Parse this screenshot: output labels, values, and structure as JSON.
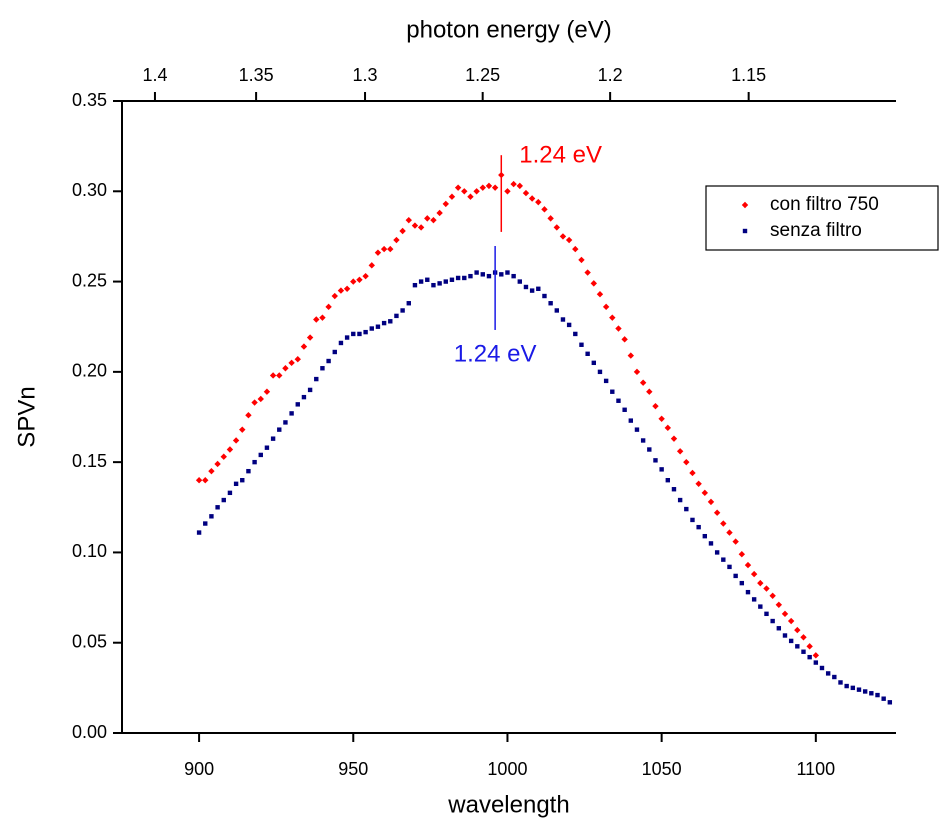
{
  "chart_data": {
    "type": "scatter",
    "xlabel": "wavelength",
    "ylabel": "SPVn",
    "x2label": "photon energy (eV)",
    "xlim": [
      875,
      1126
    ],
    "xticks": [
      900,
      950,
      1000,
      1050,
      1100
    ],
    "ylim": [
      0,
      0.35
    ],
    "yticks": [
      {
        "value": 0,
        "label": "0.00"
      },
      {
        "value": 0.05,
        "label": "0.05"
      },
      {
        "value": 0.1,
        "label": "0.10"
      },
      {
        "value": 0.15,
        "label": "0.15"
      },
      {
        "value": 0.2,
        "label": "0.20"
      },
      {
        "value": 0.25,
        "label": "0.25"
      },
      {
        "value": 0.3,
        "label": "0.30"
      },
      {
        "value": 0.35,
        "label": "0.35"
      }
    ],
    "x2lim": [
      1.4171,
      1.1012
    ],
    "x2scale": "reciprocal",
    "x2ticks": [
      1.4,
      1.35,
      1.3,
      1.25,
      1.2,
      1.15
    ],
    "grid": false,
    "legend": "upper right",
    "series": [
      {
        "name": "con filtro 750",
        "color": "#ff0000",
        "marker": "diamond",
        "x": [
          900,
          902,
          904,
          906,
          908,
          910,
          912,
          914,
          916,
          918,
          920,
          922,
          924,
          926,
          928,
          930,
          932,
          934,
          936,
          938,
          940,
          942,
          944,
          946,
          948,
          950,
          952,
          954,
          956,
          958,
          960,
          962,
          964,
          966,
          968,
          970,
          972,
          974,
          976,
          978,
          980,
          982,
          984,
          986,
          988,
          990,
          992,
          994,
          996,
          998,
          1000,
          1002,
          1004,
          1006,
          1008,
          1010,
          1012,
          1014,
          1016,
          1018,
          1020,
          1022,
          1024,
          1026,
          1028,
          1030,
          1032,
          1034,
          1036,
          1038,
          1040,
          1042,
          1044,
          1046,
          1048,
          1050,
          1052,
          1054,
          1056,
          1058,
          1060,
          1062,
          1064,
          1066,
          1068,
          1070,
          1072,
          1074,
          1076,
          1078,
          1080,
          1082,
          1084,
          1086,
          1088,
          1090,
          1092,
          1094,
          1096,
          1098,
          1100
        ],
        "values": [
          0.14,
          0.14,
          0.145,
          0.149,
          0.153,
          0.157,
          0.162,
          0.168,
          0.176,
          0.183,
          0.185,
          0.189,
          0.198,
          0.198,
          0.202,
          0.205,
          0.207,
          0.214,
          0.219,
          0.229,
          0.23,
          0.236,
          0.242,
          0.245,
          0.246,
          0.25,
          0.251,
          0.253,
          0.259,
          0.266,
          0.268,
          0.268,
          0.273,
          0.278,
          0.284,
          0.281,
          0.28,
          0.285,
          0.284,
          0.288,
          0.293,
          0.297,
          0.302,
          0.3,
          0.297,
          0.3,
          0.302,
          0.303,
          0.302,
          0.309,
          0.3,
          0.304,
          0.303,
          0.299,
          0.296,
          0.294,
          0.29,
          0.285,
          0.28,
          0.275,
          0.273,
          0.268,
          0.262,
          0.255,
          0.249,
          0.243,
          0.236,
          0.23,
          0.224,
          0.218,
          0.209,
          0.2,
          0.194,
          0.189,
          0.181,
          0.174,
          0.169,
          0.163,
          0.156,
          0.15,
          0.144,
          0.138,
          0.133,
          0.128,
          0.122,
          0.116,
          0.111,
          0.106,
          0.099,
          0.093,
          0.088,
          0.083,
          0.08,
          0.076,
          0.071,
          0.066,
          0.062,
          0.057,
          0.053,
          0.048,
          0.043
        ]
      },
      {
        "name": "senza filtro",
        "color": "#000080",
        "marker": "square",
        "x": [
          900,
          902,
          904,
          906,
          908,
          910,
          912,
          914,
          916,
          918,
          920,
          922,
          924,
          926,
          928,
          930,
          932,
          934,
          936,
          938,
          940,
          942,
          944,
          946,
          948,
          950,
          952,
          954,
          956,
          958,
          960,
          962,
          964,
          966,
          968,
          970,
          972,
          974,
          976,
          978,
          980,
          982,
          984,
          986,
          988,
          990,
          992,
          994,
          996,
          998,
          1000,
          1002,
          1004,
          1006,
          1008,
          1010,
          1012,
          1014,
          1016,
          1018,
          1020,
          1022,
          1024,
          1026,
          1028,
          1030,
          1032,
          1034,
          1036,
          1038,
          1040,
          1042,
          1044,
          1046,
          1048,
          1050,
          1052,
          1054,
          1056,
          1058,
          1060,
          1062,
          1064,
          1066,
          1068,
          1070,
          1072,
          1074,
          1076,
          1078,
          1080,
          1082,
          1084,
          1086,
          1088,
          1090,
          1092,
          1094,
          1096,
          1098,
          1100,
          1102,
          1104,
          1106,
          1108,
          1110,
          1112,
          1114,
          1116,
          1118,
          1120,
          1122,
          1124
        ],
        "values": [
          0.111,
          0.116,
          0.12,
          0.125,
          0.129,
          0.133,
          0.138,
          0.14,
          0.145,
          0.15,
          0.154,
          0.158,
          0.163,
          0.168,
          0.172,
          0.177,
          0.182,
          0.186,
          0.19,
          0.196,
          0.202,
          0.206,
          0.211,
          0.216,
          0.219,
          0.221,
          0.221,
          0.222,
          0.224,
          0.225,
          0.227,
          0.228,
          0.231,
          0.234,
          0.238,
          0.248,
          0.25,
          0.251,
          0.248,
          0.249,
          0.25,
          0.251,
          0.252,
          0.252,
          0.253,
          0.255,
          0.254,
          0.253,
          0.255,
          0.254,
          0.255,
          0.253,
          0.25,
          0.247,
          0.245,
          0.246,
          0.242,
          0.238,
          0.234,
          0.229,
          0.226,
          0.221,
          0.215,
          0.21,
          0.205,
          0.2,
          0.195,
          0.189,
          0.184,
          0.179,
          0.173,
          0.168,
          0.162,
          0.157,
          0.151,
          0.146,
          0.14,
          0.135,
          0.129,
          0.124,
          0.118,
          0.114,
          0.109,
          0.105,
          0.1,
          0.096,
          0.092,
          0.087,
          0.083,
          0.078,
          0.074,
          0.07,
          0.066,
          0.062,
          0.058,
          0.054,
          0.051,
          0.048,
          0.045,
          0.042,
          0.039,
          0.036,
          0.033,
          0.031,
          0.028,
          0.026,
          0.025,
          0.024,
          0.023,
          0.022,
          0.021,
          0.019,
          0.017
        ]
      }
    ],
    "annotations": [
      {
        "text": "1.24 eV",
        "color": "#ff0000",
        "x": 998,
        "y": [
          0.2775,
          0.32
        ],
        "position": "right"
      },
      {
        "text": "1.24 eV",
        "color": "#1a1ae6",
        "x": 996,
        "y": [
          0.2232,
          0.2697
        ],
        "position": "below"
      }
    ]
  }
}
